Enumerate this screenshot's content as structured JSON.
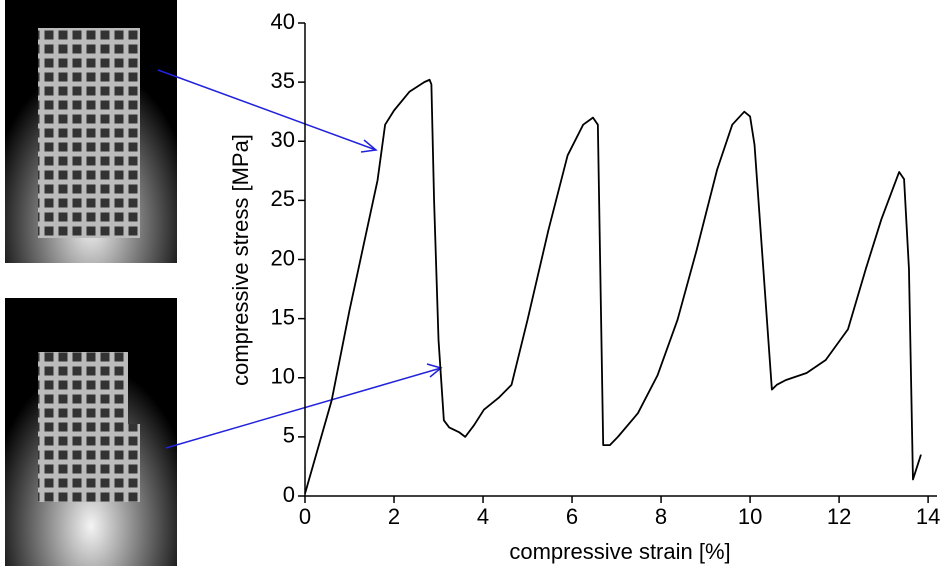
{
  "chart_data": {
    "type": "line",
    "xlabel": "compressive strain [%]",
    "ylabel": "compressive stress [MPa]",
    "xlim": [
      0,
      14.2
    ],
    "xticks": [
      0,
      2,
      4,
      6,
      8,
      10,
      12,
      14
    ],
    "ylim": [
      0,
      40
    ],
    "yticks": [
      0,
      5,
      10,
      15,
      20,
      25,
      30,
      35,
      40
    ],
    "series": [
      {
        "color": "#000000",
        "x": [
          0,
          0.6,
          1.0,
          1.63,
          1.8,
          2.0,
          2.35,
          2.68,
          2.8,
          2.84,
          2.9,
          3.0,
          3.12,
          3.24,
          3.46,
          3.6,
          3.8,
          4.02,
          4.35,
          4.64,
          5.0,
          5.47,
          5.9,
          6.25,
          6.47,
          6.58,
          6.7,
          6.85,
          7.03,
          7.48,
          7.92,
          8.37,
          8.8,
          9.26,
          9.6,
          9.87,
          10.0,
          10.1,
          10.49,
          10.6,
          10.8,
          11.27,
          11.7,
          12.2,
          12.6,
          12.95,
          13.2,
          13.35,
          13.46,
          13.57,
          13.66,
          13.84
        ],
        "values": [
          0.2,
          8.1,
          15.7,
          26.7,
          31.4,
          32.6,
          34.2,
          35.0,
          35.2,
          34.8,
          25.0,
          13.2,
          6.4,
          5.8,
          5.4,
          5.0,
          6.0,
          7.3,
          8.3,
          9.4,
          14.9,
          22.5,
          28.8,
          31.4,
          32.0,
          31.4,
          4.3,
          4.3,
          5.0,
          7.0,
          10.2,
          14.9,
          20.8,
          27.6,
          31.4,
          32.5,
          32.1,
          29.7,
          9.0,
          9.4,
          9.8,
          10.4,
          11.5,
          14.1,
          19.2,
          23.4,
          25.9,
          27.4,
          26.8,
          19.2,
          1.4,
          3.5
        ]
      }
    ]
  }
}
